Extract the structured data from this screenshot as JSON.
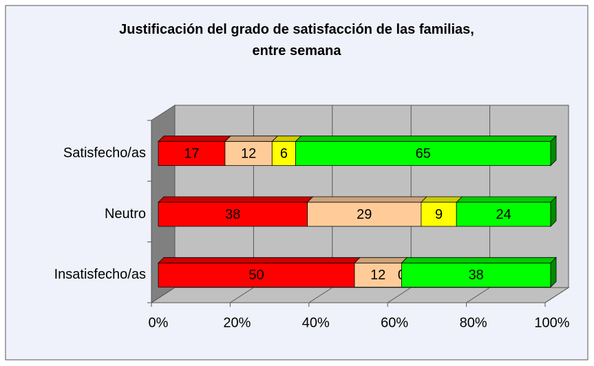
{
  "chart_data": {
    "type": "bar",
    "orientation": "horizontal",
    "stacked": true,
    "three_d": true,
    "title": "Justificación del grado de satisfacción de las familias, entre semana",
    "categories": [
      "Satisfecho/as",
      "Neutro",
      "Insatisfecho/as"
    ],
    "series": [
      {
        "color": "#ff0000",
        "values": [
          17,
          38,
          50
        ]
      },
      {
        "color": "#ffcc99",
        "values": [
          12,
          29,
          12
        ]
      },
      {
        "color": "#ffff00",
        "values": [
          6,
          9,
          0
        ]
      },
      {
        "color": "#00ff00",
        "values": [
          65,
          24,
          38
        ]
      }
    ],
    "xlim": [
      0,
      100
    ],
    "xticks": [
      {
        "value": 0,
        "label": "0%"
      },
      {
        "value": 20,
        "label": "20%"
      },
      {
        "value": 40,
        "label": "40%"
      },
      {
        "value": 60,
        "label": "60%"
      },
      {
        "value": 80,
        "label": "80%"
      },
      {
        "value": 100,
        "label": "100%"
      }
    ],
    "grid": true
  }
}
